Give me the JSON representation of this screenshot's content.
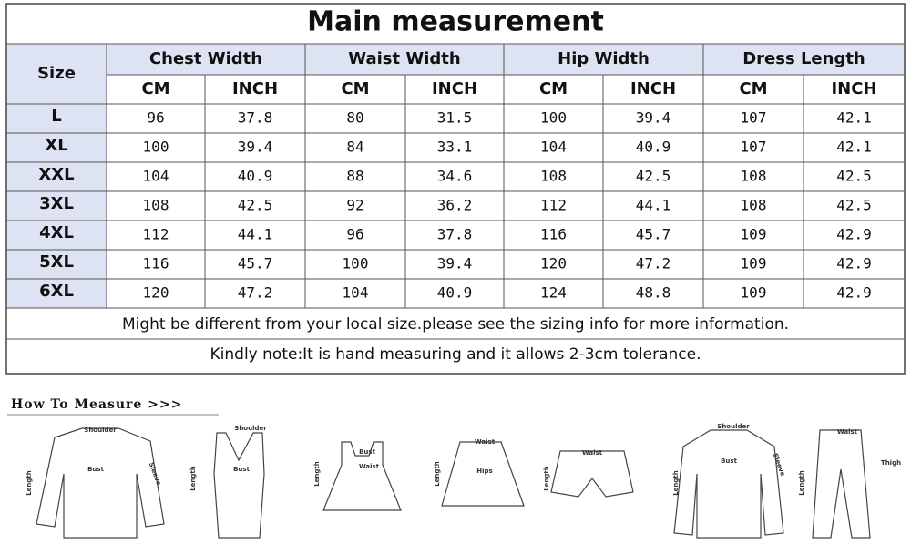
{
  "table": {
    "title": "Main measurement",
    "size_header": "Size",
    "groups": [
      {
        "name": "Chest Width",
        "units": [
          "CM",
          "INCH"
        ]
      },
      {
        "name": "Waist Width",
        "units": [
          "CM",
          "INCH"
        ]
      },
      {
        "name": "Hip Width",
        "units": [
          "CM",
          "INCH"
        ]
      },
      {
        "name": "Dress Length",
        "units": [
          "CM",
          "INCH"
        ]
      }
    ],
    "rows": [
      {
        "size": "L",
        "values": [
          96,
          37.8,
          80,
          31.5,
          100,
          39.4,
          107,
          42.1
        ]
      },
      {
        "size": "XL",
        "values": [
          100,
          39.4,
          84,
          33.1,
          104,
          40.9,
          107,
          42.1
        ]
      },
      {
        "size": "XXL",
        "values": [
          104,
          40.9,
          88,
          34.6,
          108,
          42.5,
          108,
          42.5
        ]
      },
      {
        "size": "3XL",
        "values": [
          108,
          42.5,
          92,
          36.2,
          112,
          44.1,
          108,
          42.5
        ]
      },
      {
        "size": "4XL",
        "values": [
          112,
          44.1,
          96,
          37.8,
          116,
          45.7,
          109,
          42.9
        ]
      },
      {
        "size": "5XL",
        "values": [
          116,
          45.7,
          100,
          39.4,
          120,
          47.2,
          109,
          42.9
        ]
      },
      {
        "size": "6XL",
        "values": [
          120,
          47.2,
          104,
          40.9,
          124,
          48.8,
          109,
          42.9
        ]
      }
    ],
    "notes": [
      "Might be different from your local size.please see the sizing info for more information.",
      "Kindly note:It is hand measuring and it allows 2-3cm tolerance."
    ]
  },
  "how_to_measure": {
    "title": "How To Measure >>>",
    "items": [
      {
        "labels": [
          "Shoulder",
          "Bust",
          "Length",
          "Sleeve"
        ]
      },
      {
        "labels": [
          "Shoulder",
          "Bust",
          "Length"
        ]
      },
      {
        "labels": [
          "Bust",
          "Waist",
          "Length"
        ]
      },
      {
        "labels": [
          "Waist",
          "Hips",
          "Length"
        ]
      },
      {
        "labels": [
          "Waist",
          "Length"
        ]
      },
      {
        "labels": [
          "Shoulder",
          "Bust",
          "Length",
          "Sleeve"
        ]
      },
      {
        "labels": [
          "Waist",
          "Thigh",
          "Length"
        ]
      }
    ]
  }
}
